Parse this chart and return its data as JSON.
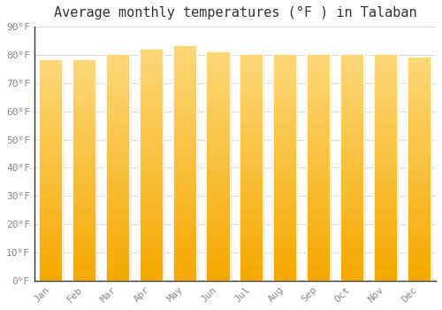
{
  "title": "Average monthly temperatures (°F ) in Talaban",
  "months": [
    "Jan",
    "Feb",
    "Mar",
    "Apr",
    "May",
    "Jun",
    "Jul",
    "Aug",
    "Sep",
    "Oct",
    "Nov",
    "Dec"
  ],
  "values": [
    78,
    78,
    80,
    82,
    83,
    81,
    80,
    80,
    80,
    80,
    80,
    79
  ],
  "bar_color_top": "#FDD87A",
  "bar_color_bottom": "#F5A800",
  "bar_color_edge": "#E8A000",
  "background_color": "#FFFFFF",
  "plot_bg_color": "#FFFFFF",
  "grid_color": "#DDDDDD",
  "ylabel_ticks": [
    "0°F",
    "10°F",
    "20°F",
    "30°F",
    "40°F",
    "50°F",
    "60°F",
    "70°F",
    "80°F",
    "90°F"
  ],
  "ytick_vals": [
    0,
    10,
    20,
    30,
    40,
    50,
    60,
    70,
    80,
    90
  ],
  "ylim": [
    0,
    90
  ],
  "title_fontsize": 11,
  "tick_fontsize": 8,
  "tick_color": "#888888",
  "axis_color": "#333333"
}
